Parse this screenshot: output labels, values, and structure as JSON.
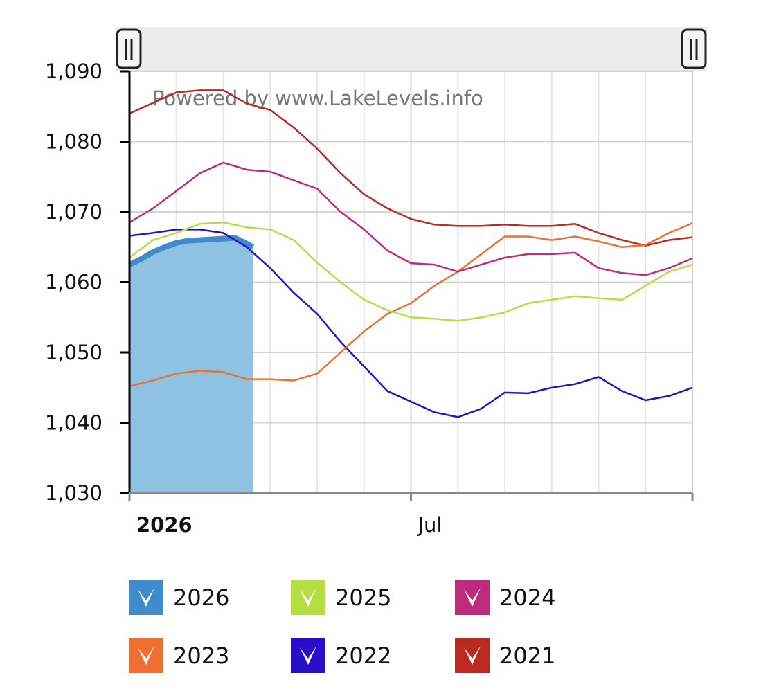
{
  "chart_data": {
    "type": "line",
    "watermark": "Powered by www.LakeLevels.info",
    "xlabel": "",
    "ylabel": "",
    "x_unit": "months since Jan 1",
    "xlim": [
      0,
      12
    ],
    "ylim": [
      1030,
      1090
    ],
    "y_ticks": [
      1030,
      1040,
      1050,
      1060,
      1070,
      1080,
      1090
    ],
    "y_tick_labels": [
      "1,030",
      "1,040",
      "1,050",
      "1,060",
      "1,070",
      "1,080",
      "1,090"
    ],
    "x_tick_labels": [
      {
        "label": "2026",
        "x": 0,
        "bold": true
      },
      {
        "label": "Jul",
        "x": 6,
        "bold": false
      }
    ],
    "grid": true,
    "legend_placement": "bottom",
    "x": [
      0,
      0.5,
      1,
      1.5,
      2,
      2.5,
      3,
      3.5,
      4,
      4.5,
      5,
      5.5,
      6,
      6.5,
      7,
      7.5,
      8,
      8.5,
      9,
      9.5,
      10,
      10.5,
      11,
      11.5,
      12
    ],
    "series": [
      {
        "name": "2026",
        "color": "#3f8bcb",
        "fill": "#8fc1e3",
        "style": "area",
        "x": [
          0,
          0.25,
          0.5,
          0.75,
          1,
          1.25,
          1.5,
          1.75,
          2,
          2.25,
          2.5,
          2.63
        ],
        "values": [
          1062.5,
          1063.3,
          1064.3,
          1065,
          1065.6,
          1065.9,
          1066,
          1066.1,
          1066.2,
          1066.3,
          1065.5,
          1065
        ]
      },
      {
        "name": "2025",
        "color": "#b5de43",
        "values": [
          1063.5,
          1066,
          1067,
          1068.3,
          1068.5,
          1067.8,
          1067.5,
          1066,
          1062.8,
          1060,
          1057.5,
          1056,
          1055,
          1054.8,
          1054.5,
          1055,
          1055.7,
          1057,
          1057.5,
          1058,
          1057.7,
          1057.5,
          1059.5,
          1061.5,
          1062.5
        ]
      },
      {
        "name": "2024",
        "color": "#bd2b7c",
        "values": [
          1068.5,
          1070.5,
          1073,
          1075.5,
          1077,
          1076,
          1075.7,
          1074.5,
          1073.3,
          1070,
          1067.5,
          1064.5,
          1062.7,
          1062.5,
          1061.5,
          1062.5,
          1063.5,
          1064,
          1064,
          1064.2,
          1062,
          1061.3,
          1061,
          1062,
          1063.4
        ]
      },
      {
        "name": "2023",
        "color": "#ee7030",
        "values": [
          1045.2,
          1046,
          1047,
          1047.4,
          1047.2,
          1046.2,
          1046.2,
          1046,
          1047,
          1050,
          1053,
          1055.5,
          1057,
          1059.5,
          1061.5,
          1064,
          1066.5,
          1066.5,
          1066,
          1066.5,
          1065.8,
          1065,
          1065.3,
          1067,
          1068.4
        ]
      },
      {
        "name": "2022",
        "color": "#2a0fc9",
        "values": [
          1066.6,
          1067,
          1067.5,
          1067.5,
          1067,
          1065,
          1062,
          1058.5,
          1055.5,
          1051.5,
          1048,
          1044.5,
          1043,
          1041.5,
          1040.8,
          1042,
          1044.3,
          1044.2,
          1045,
          1045.5,
          1046.5,
          1044.5,
          1043.2,
          1043.8,
          1045
        ]
      },
      {
        "name": "2021",
        "color": "#bb2a20",
        "values": [
          1084,
          1085.5,
          1087,
          1087.3,
          1087.3,
          1085.4,
          1084.5,
          1082,
          1079,
          1075.5,
          1072.5,
          1070.5,
          1069,
          1068.2,
          1068,
          1068,
          1068.2,
          1068,
          1068,
          1068.3,
          1067,
          1066,
          1065.2,
          1066,
          1066.4
        ]
      }
    ]
  },
  "legend": [
    {
      "label": "2026",
      "color": "#3f8bcb",
      "checked": true
    },
    {
      "label": "2025",
      "color": "#b5de43",
      "checked": true
    },
    {
      "label": "2024",
      "color": "#bd2b7c",
      "checked": true
    },
    {
      "label": "2023",
      "color": "#ee7030",
      "checked": true
    },
    {
      "label": "2022",
      "color": "#2a0fc9",
      "checked": true
    },
    {
      "label": "2021",
      "color": "#bb2a20",
      "checked": true
    }
  ]
}
